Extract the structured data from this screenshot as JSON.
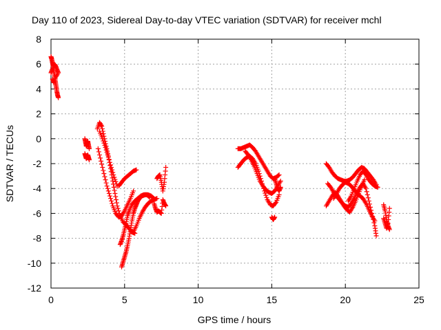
{
  "chart_data": {
    "type": "scatter",
    "title": "Day 110 of 2023, Sidereal Day-to-day VTEC variation (SDTVAR) for receiver mchl",
    "xlabel": "GPS time / hours",
    "ylabel": "SDTVAR / TECUs",
    "xlim": [
      0,
      25
    ],
    "ylim": [
      -12,
      8
    ],
    "x_ticks": [
      0,
      5,
      10,
      15,
      20,
      25
    ],
    "y_ticks": [
      -12,
      -10,
      -8,
      -6,
      -4,
      -2,
      0,
      2,
      4,
      6,
      8
    ],
    "grid": true,
    "marker": "+",
    "color": "#ff0000",
    "series": [
      {
        "name": "s1",
        "x": [
          0.0,
          0.05,
          0.1,
          0.15,
          0.2,
          0.25,
          0.3,
          0.35,
          0.4,
          0.45,
          0.5
        ],
        "y": [
          6.6,
          6.4,
          6.1,
          5.8,
          5.4,
          5.0,
          4.6,
          4.2,
          3.8,
          3.5,
          3.3
        ]
      },
      {
        "name": "s2",
        "x": [
          0.0,
          0.1,
          0.2,
          0.3,
          0.4,
          0.5,
          0.3,
          0.2,
          0.1
        ],
        "y": [
          5.3,
          5.6,
          6.0,
          5.9,
          5.6,
          5.3,
          4.9,
          4.5,
          4.8
        ]
      },
      {
        "name": "s3",
        "x": [
          2.3,
          2.35,
          2.4,
          2.45,
          2.5,
          2.55,
          2.6
        ],
        "y": [
          0.0,
          -0.3,
          -0.6,
          -0.4,
          -0.2,
          -0.5,
          -0.8
        ]
      },
      {
        "name": "s4",
        "x": [
          2.3,
          2.35,
          2.4,
          2.45,
          2.5,
          2.55,
          2.6
        ],
        "y": [
          -1.2,
          -1.4,
          -1.6,
          -1.4,
          -1.3,
          -1.5,
          -1.7
        ]
      },
      {
        "name": "s5",
        "x": [
          3.15,
          3.3,
          3.45,
          3.6,
          3.75,
          3.9,
          4.05,
          4.2,
          4.35,
          4.5,
          4.7,
          4.9,
          5.1,
          5.3,
          5.5,
          5.7
        ],
        "y": [
          0.8,
          1.3,
          1.0,
          0.2,
          -0.6,
          -1.4,
          -2.4,
          -3.4,
          -4.4,
          -5.4,
          -6.2,
          -6.7,
          -6.9,
          -7.2,
          -7.5,
          -7.6
        ]
      },
      {
        "name": "s6",
        "x": [
          3.2,
          3.4,
          3.6,
          3.8,
          4.0,
          4.2,
          4.4,
          4.6,
          4.8,
          5.0,
          5.2,
          5.4,
          5.6
        ],
        "y": [
          -0.8,
          -1.8,
          -2.8,
          -3.8,
          -4.6,
          -5.4,
          -6.0,
          -6.3,
          -6.2,
          -5.8,
          -5.3,
          -4.8,
          -4.2
        ]
      },
      {
        "name": "s7",
        "x": [
          3.3,
          3.5,
          3.7,
          3.9,
          4.1,
          4.3,
          4.5
        ],
        "y": [
          0.6,
          0.0,
          -0.7,
          -1.5,
          -2.3,
          -3.1,
          -3.8
        ]
      },
      {
        "name": "s8",
        "x": [
          4.6,
          4.8,
          5.0,
          5.2,
          5.4,
          5.6,
          5.8
        ],
        "y": [
          -3.8,
          -3.5,
          -3.2,
          -3.0,
          -2.8,
          -2.6,
          -2.5
        ]
      },
      {
        "name": "s9",
        "x": [
          4.8,
          4.9,
          5.0,
          5.1,
          5.2,
          5.3,
          5.4,
          5.5,
          5.6,
          5.7,
          5.8,
          5.9,
          6.0,
          6.2,
          6.4,
          6.6,
          6.8,
          7.0
        ],
        "y": [
          -10.3,
          -9.9,
          -9.5,
          -9.1,
          -8.6,
          -8.0,
          -7.3,
          -6.6,
          -6.0,
          -5.6,
          -5.3,
          -5.0,
          -4.8,
          -4.6,
          -4.5,
          -4.5,
          -4.6,
          -4.8
        ]
      },
      {
        "name": "s10",
        "x": [
          4.7,
          4.8,
          4.9,
          5.0,
          5.1,
          5.2,
          5.3,
          5.5,
          5.7,
          5.9,
          6.1,
          6.3,
          6.5,
          6.7
        ],
        "y": [
          -8.5,
          -8.2,
          -7.8,
          -7.3,
          -6.8,
          -6.2,
          -5.8,
          -5.3,
          -5.0,
          -4.8,
          -4.6,
          -4.5,
          -4.5,
          -4.7
        ]
      },
      {
        "name": "s11",
        "x": [
          5.6,
          5.8,
          6.0,
          6.2,
          6.4,
          6.6,
          6.8,
          7.0,
          7.2
        ],
        "y": [
          -7.5,
          -7.0,
          -6.4,
          -5.9,
          -5.5,
          -5.2,
          -5.0,
          -4.9,
          -4.8
        ]
      },
      {
        "name": "s12",
        "x": [
          7.2,
          7.3,
          7.4,
          7.5,
          7.6,
          7.7,
          7.8
        ],
        "y": [
          -3.2,
          -3.0,
          -2.9,
          -3.5,
          -4.2,
          -3.5,
          -2.3
        ]
      },
      {
        "name": "s13",
        "x": [
          7.0,
          7.1,
          7.2,
          7.3,
          7.4,
          7.5,
          7.6,
          7.7,
          7.8
        ],
        "y": [
          -5.2,
          -5.6,
          -5.9,
          -5.8,
          -5.9,
          -6.0,
          -4.9,
          -5.2,
          -5.4
        ]
      },
      {
        "name": "s14",
        "x": [
          12.7,
          12.9,
          13.1,
          13.3,
          13.5,
          13.7,
          13.9,
          14.1,
          14.3,
          14.5,
          14.7,
          14.9,
          15.1,
          15.3,
          15.5
        ],
        "y": [
          -0.8,
          -0.8,
          -0.7,
          -0.6,
          -0.5,
          -0.7,
          -1.0,
          -1.4,
          -1.8,
          -2.2,
          -2.6,
          -3.0,
          -3.2,
          -3.1,
          -2.9
        ]
      },
      {
        "name": "s15",
        "x": [
          12.7,
          12.9,
          13.1,
          13.3,
          13.5,
          13.7,
          13.9,
          14.1,
          14.3,
          14.5,
          14.7,
          14.9,
          15.1,
          15.3,
          15.5
        ],
        "y": [
          -2.3,
          -2.0,
          -1.7,
          -1.5,
          -1.4,
          -1.6,
          -2.0,
          -2.6,
          -3.4,
          -4.2,
          -4.9,
          -5.3,
          -5.4,
          -5.1,
          -4.5
        ]
      },
      {
        "name": "s16",
        "x": [
          13.2,
          13.4,
          13.6,
          13.8,
          14.0,
          14.2,
          14.4,
          14.6,
          14.8,
          15.0,
          15.2,
          15.4,
          15.6
        ],
        "y": [
          -1.0,
          -1.3,
          -1.7,
          -2.2,
          -2.8,
          -3.4,
          -3.8,
          -4.1,
          -4.3,
          -4.4,
          -4.2,
          -3.8,
          -3.4
        ]
      },
      {
        "name": "s17",
        "x": [
          15.0,
          15.1,
          15.2
        ],
        "y": [
          -6.3,
          -6.5,
          -6.3
        ]
      },
      {
        "name": "s18",
        "x": [
          15.2,
          15.3,
          15.4,
          15.5,
          15.6
        ],
        "y": [
          -3.2,
          -3.6,
          -4.0,
          -4.2,
          -3.9
        ]
      },
      {
        "name": "s19",
        "x": [
          18.7,
          18.9,
          19.1,
          19.3,
          19.5,
          19.7,
          19.9,
          20.1,
          20.3,
          20.5,
          20.7,
          20.9,
          21.1,
          21.3,
          21.5,
          21.7,
          21.9,
          22.1
        ],
        "y": [
          -2.0,
          -2.3,
          -2.7,
          -3.0,
          -3.2,
          -3.3,
          -3.4,
          -3.4,
          -3.3,
          -3.1,
          -2.8,
          -2.5,
          -2.3,
          -2.4,
          -2.7,
          -3.0,
          -3.3,
          -3.7
        ]
      },
      {
        "name": "s20",
        "x": [
          18.7,
          18.9,
          19.1,
          19.3,
          19.5,
          19.7,
          19.9,
          20.1,
          20.3,
          20.5,
          20.7,
          20.9,
          21.1,
          21.3
        ],
        "y": [
          -5.4,
          -5.0,
          -4.6,
          -4.3,
          -4.6,
          -5.0,
          -5.4,
          -5.7,
          -5.9,
          -5.5,
          -5.0,
          -4.4,
          -3.8,
          -3.3
        ]
      },
      {
        "name": "s21",
        "x": [
          18.8,
          19.0,
          19.2,
          19.4,
          19.6,
          19.8,
          20.0,
          20.2,
          20.4,
          20.6,
          20.8,
          21.0,
          21.2,
          21.4,
          21.6,
          21.8,
          22.0,
          22.1
        ],
        "y": [
          -3.6,
          -3.9,
          -4.3,
          -4.6,
          -4.9,
          -5.2,
          -5.4,
          -5.5,
          -5.2,
          -4.8,
          -4.3,
          -3.9,
          -3.6,
          -4.0,
          -5.0,
          -6.0,
          -7.0,
          -7.8
        ]
      },
      {
        "name": "s22",
        "x": [
          19.2,
          19.4,
          19.6,
          19.8,
          20.0,
          20.2,
          20.4,
          20.6,
          20.8,
          21.0,
          21.2,
          21.4,
          21.6,
          21.8,
          22.0
        ],
        "y": [
          -4.8,
          -4.4,
          -4.0,
          -3.7,
          -3.5,
          -3.6,
          -3.8,
          -4.1,
          -4.4,
          -4.6,
          -4.8,
          -5.2,
          -5.7,
          -6.2,
          -6.6
        ]
      },
      {
        "name": "s23",
        "x": [
          20.2,
          20.4,
          20.6,
          20.8,
          21.0,
          21.2,
          21.4,
          21.6,
          21.8,
          22.0,
          22.2
        ],
        "y": [
          -5.0,
          -4.6,
          -4.0,
          -3.4,
          -2.9,
          -2.6,
          -2.9,
          -3.3,
          -3.6,
          -3.8,
          -3.9
        ]
      },
      {
        "name": "s24",
        "x": [
          22.6,
          22.7,
          22.8,
          22.9,
          23.0
        ],
        "y": [
          -5.3,
          -5.8,
          -6.5,
          -7.0,
          -7.3
        ]
      },
      {
        "name": "s25",
        "x": [
          22.6,
          22.7,
          22.8,
          22.9,
          23.0
        ],
        "y": [
          -6.4,
          -6.8,
          -7.2,
          -6.8,
          -5.6
        ]
      }
    ]
  }
}
